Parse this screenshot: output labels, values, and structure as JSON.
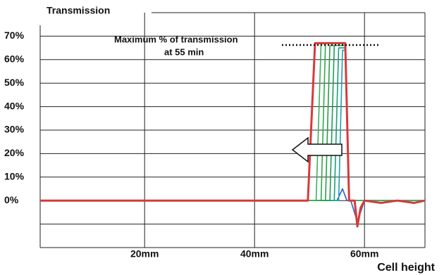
{
  "chart_data": {
    "type": "line",
    "title": "Transmission",
    "xlabel": "Cell height",
    "annotation": [
      "Maximum % of transmission",
      "at 55 min"
    ],
    "xlim": [
      1,
      71
    ],
    "ylim": [
      -20,
      80
    ],
    "xticks": [
      {
        "value": 20,
        "label": "20mm"
      },
      {
        "value": 40,
        "label": "40mm"
      },
      {
        "value": 60,
        "label": "60mm"
      }
    ],
    "yticks": [
      {
        "value": -20,
        "label": null
      },
      {
        "value": -10,
        "label": null
      },
      {
        "value": 0,
        "label": "0%"
      },
      {
        "value": 10,
        "label": "10%"
      },
      {
        "value": 20,
        "label": "20%"
      },
      {
        "value": 30,
        "label": "30%"
      },
      {
        "value": 40,
        "label": "40%"
      },
      {
        "value": 50,
        "label": "50%"
      },
      {
        "value": 60,
        "label": "60%"
      },
      {
        "value": 70,
        "label": "70%"
      }
    ],
    "grid": true,
    "series": [
      {
        "color": "#2a5fc4",
        "x": [
          42,
          55,
          56,
          56.8,
          57.5,
          58.7,
          60,
          71
        ],
        "values": [
          0,
          0,
          5,
          0,
          0,
          -9,
          0,
          0
        ]
      },
      {
        "color": "#1aa6a0",
        "x": [
          42,
          55.3,
          56,
          56.5,
          57.2,
          71
        ],
        "values": [
          0,
          0,
          64,
          64,
          0,
          0
        ]
      },
      {
        "color": "#16a07a",
        "x": [
          42,
          54.5,
          55.3,
          56.5,
          57.2,
          71
        ],
        "values": [
          0,
          0,
          65,
          65,
          0,
          0
        ]
      },
      {
        "color": "#1c9c55",
        "x": [
          42,
          53.7,
          54.5,
          56.5,
          57.2,
          71
        ],
        "values": [
          0,
          0,
          66,
          66,
          0,
          0
        ]
      },
      {
        "color": "#25a047",
        "x": [
          42,
          52.9,
          53.7,
          56.5,
          57.2,
          71
        ],
        "values": [
          0,
          0,
          66,
          66,
          0,
          0
        ]
      },
      {
        "color": "#2fa84a",
        "x": [
          42,
          52.1,
          52.9,
          56.5,
          57.2,
          71
        ],
        "values": [
          0,
          0,
          67,
          67,
          0,
          0
        ]
      },
      {
        "color": "#3cb060",
        "x": [
          42,
          51.2,
          52.1,
          56.5,
          57.2,
          71
        ],
        "values": [
          0,
          0,
          67,
          67,
          0,
          0
        ]
      },
      {
        "color": "#d8393a",
        "x": [
          1,
          49.7,
          51,
          56.5,
          57.2,
          58.2,
          58.7,
          59.3,
          60,
          63,
          66,
          69,
          71
        ],
        "values": [
          0,
          0,
          67,
          67,
          0,
          0,
          -11,
          -3,
          0,
          -1,
          0,
          -1,
          0
        ]
      }
    ]
  }
}
